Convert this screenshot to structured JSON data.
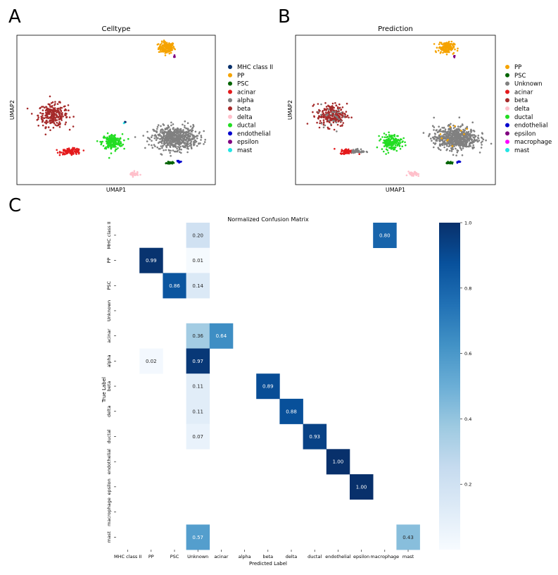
{
  "panel_labels": [
    "A",
    "B",
    "C"
  ],
  "chart_data": [
    {
      "type": "scatter",
      "title": "Celltype",
      "xlabel": "UMAP1",
      "ylabel": "UMAP2",
      "legend_position": "right",
      "legend": [
        {
          "name": "MHC class II",
          "color": "#08306b"
        },
        {
          "name": "PP",
          "color": "#f5a300"
        },
        {
          "name": "PSC",
          "color": "#006400"
        },
        {
          "name": "acinar",
          "color": "#e41a1c"
        },
        {
          "name": "alpha",
          "color": "#808080"
        },
        {
          "name": "beta",
          "color": "#a52a2a"
        },
        {
          "name": "delta",
          "color": "#ffc0cb"
        },
        {
          "name": "ductal",
          "color": "#22dd22"
        },
        {
          "name": "endothelial",
          "color": "#0000cd"
        },
        {
          "name": "epsilon",
          "color": "#800080"
        },
        {
          "name": "mast",
          "color": "#22e5e5"
        }
      ],
      "clusters": [
        {
          "label": "PP",
          "cx": 5.2,
          "cy": 9.0,
          "sx": 0.35,
          "sy": 0.28,
          "n": 150
        },
        {
          "label": "beta",
          "cx": -4.8,
          "cy": 2.5,
          "sx": 0.65,
          "sy": 0.55,
          "n": 260
        },
        {
          "label": "acinar",
          "cx": -3.2,
          "cy": -1.0,
          "sx": 0.45,
          "sy": 0.14,
          "n": 110
        },
        {
          "label": "ductal",
          "cx": 0.4,
          "cy": -0.1,
          "sx": 0.45,
          "sy": 0.38,
          "n": 180
        },
        {
          "label": "alpha",
          "cx": 6.0,
          "cy": 0.3,
          "sx": 0.95,
          "sy": 0.55,
          "n": 600
        },
        {
          "label": "delta",
          "cx": 2.3,
          "cy": -3.2,
          "sx": 0.2,
          "sy": 0.12,
          "n": 45
        },
        {
          "label": "PSC",
          "cx": 5.5,
          "cy": -2.1,
          "sx": 0.15,
          "sy": 0.06,
          "n": 28
        },
        {
          "label": "endothelial",
          "cx": 6.3,
          "cy": -2.0,
          "sx": 0.1,
          "sy": 0.04,
          "n": 12
        },
        {
          "label": "epsilon",
          "cx": 5.9,
          "cy": 8.2,
          "sx": 0.04,
          "sy": 0.05,
          "n": 6
        },
        {
          "label": "MHC class II",
          "cx": 1.5,
          "cy": 1.8,
          "sx": 0.04,
          "sy": 0.04,
          "n": 3
        },
        {
          "label": "mast",
          "cx": 1.4,
          "cy": 1.7,
          "sx": 0.03,
          "sy": 0.03,
          "n": 2
        }
      ],
      "xlim": [
        -8,
        9.5
      ],
      "ylim": [
        -4.2,
        10.2
      ]
    },
    {
      "type": "scatter",
      "title": "Prediction",
      "xlabel": "UMAP1",
      "ylabel": "UMAP2",
      "legend_position": "right",
      "legend": [
        {
          "name": "PP",
          "color": "#f5a300"
        },
        {
          "name": "PSC",
          "color": "#006400"
        },
        {
          "name": "Unknown",
          "color": "#808080"
        },
        {
          "name": "acinar",
          "color": "#e41a1c"
        },
        {
          "name": "beta",
          "color": "#a52a2a"
        },
        {
          "name": "delta",
          "color": "#ffc0cb"
        },
        {
          "name": "ductal",
          "color": "#22dd22"
        },
        {
          "name": "endothelial",
          "color": "#0000cd"
        },
        {
          "name": "epsilon",
          "color": "#800080"
        },
        {
          "name": "macrophage",
          "color": "#ff00ff"
        },
        {
          "name": "mast",
          "color": "#22e5e5"
        }
      ],
      "clusters": [
        {
          "label": "PP",
          "cx": 5.2,
          "cy": 9.0,
          "sx": 0.35,
          "sy": 0.28,
          "n": 150
        },
        {
          "label": "beta",
          "cx": -4.8,
          "cy": 2.5,
          "sx": 0.65,
          "sy": 0.55,
          "n": 230
        },
        {
          "label": "acinar",
          "cx": -3.4,
          "cy": -1.0,
          "sx": 0.35,
          "sy": 0.12,
          "n": 70
        },
        {
          "label": "ductal",
          "cx": 0.4,
          "cy": -0.1,
          "sx": 0.45,
          "sy": 0.38,
          "n": 165
        },
        {
          "label": "Unknown",
          "cx": 6.0,
          "cy": 0.3,
          "sx": 0.95,
          "sy": 0.55,
          "n": 620
        },
        {
          "label": "Unknown",
          "cx": -2.5,
          "cy": -1.0,
          "sx": 0.3,
          "sy": 0.12,
          "n": 40
        },
        {
          "label": "Unknown",
          "cx": -4.8,
          "cy": 2.5,
          "sx": 0.65,
          "sy": 0.5,
          "n": 30
        },
        {
          "label": "delta",
          "cx": 2.3,
          "cy": -3.2,
          "sx": 0.2,
          "sy": 0.12,
          "n": 42
        },
        {
          "label": "PSC",
          "cx": 5.5,
          "cy": -2.1,
          "sx": 0.15,
          "sy": 0.06,
          "n": 26
        },
        {
          "label": "endothelial",
          "cx": 6.3,
          "cy": -2.0,
          "sx": 0.1,
          "sy": 0.04,
          "n": 12
        },
        {
          "label": "epsilon",
          "cx": 5.9,
          "cy": 8.2,
          "sx": 0.04,
          "sy": 0.05,
          "n": 6
        },
        {
          "label": "PP",
          "cx": 6.3,
          "cy": 0.8,
          "sx": 0.8,
          "sy": 0.5,
          "n": 10
        }
      ],
      "xlim": [
        -8,
        9.5
      ],
      "ylim": [
        -4.2,
        10.2
      ]
    },
    {
      "type": "heatmap",
      "title": "Normalized Confusion Matrix",
      "xlabel": "Predicted Label",
      "ylabel": "True Label",
      "rows": [
        "MHC class II",
        "PP",
        "PSC",
        "Unknown",
        "acinar",
        "alpha",
        "beta",
        "delta",
        "ductal",
        "endothelial",
        "epsilon",
        "macrophage",
        "mast"
      ],
      "cols": [
        "MHC class II",
        "PP",
        "PSC",
        "Unknown",
        "acinar",
        "alpha",
        "beta",
        "delta",
        "ductal",
        "endothelial",
        "epsilon",
        "macrophage",
        "mast"
      ],
      "cells": [
        {
          "row": 0,
          "col": 3,
          "value": 0.2,
          "text": "0.20"
        },
        {
          "row": 0,
          "col": 11,
          "value": 0.8,
          "text": "0.80"
        },
        {
          "row": 1,
          "col": 1,
          "value": 0.99,
          "text": "0.99"
        },
        {
          "row": 1,
          "col": 3,
          "value": 0.01,
          "text": "0.01"
        },
        {
          "row": 2,
          "col": 2,
          "value": 0.86,
          "text": "0.86"
        },
        {
          "row": 2,
          "col": 3,
          "value": 0.14,
          "text": "0.14"
        },
        {
          "row": 4,
          "col": 3,
          "value": 0.36,
          "text": "0.36"
        },
        {
          "row": 4,
          "col": 4,
          "value": 0.64,
          "text": "0.64"
        },
        {
          "row": 5,
          "col": 1,
          "value": 0.02,
          "text": "0.02"
        },
        {
          "row": 5,
          "col": 3,
          "value": 0.97,
          "text": "0.97"
        },
        {
          "row": 6,
          "col": 3,
          "value": 0.11,
          "text": "0.11"
        },
        {
          "row": 6,
          "col": 6,
          "value": 0.89,
          "text": "0.89"
        },
        {
          "row": 7,
          "col": 3,
          "value": 0.11,
          "text": "0.11"
        },
        {
          "row": 7,
          "col": 7,
          "value": 0.88,
          "text": "0.88"
        },
        {
          "row": 8,
          "col": 3,
          "value": 0.07,
          "text": "0.07"
        },
        {
          "row": 8,
          "col": 8,
          "value": 0.93,
          "text": "0.93"
        },
        {
          "row": 9,
          "col": 9,
          "value": 1.0,
          "text": "1.00"
        },
        {
          "row": 10,
          "col": 10,
          "value": 1.0,
          "text": "1.00"
        },
        {
          "row": 12,
          "col": 3,
          "value": 0.57,
          "text": "0.57"
        },
        {
          "row": 12,
          "col": 12,
          "value": 0.43,
          "text": "0.43"
        }
      ],
      "colorbar_ticks": [
        "0.2",
        "0.4",
        "0.6",
        "0.8",
        "1.0"
      ],
      "colorbar_tick_values": [
        0.2,
        0.4,
        0.6,
        0.8,
        1.0
      ],
      "vmin": 0.0,
      "vmax": 1.0,
      "colormap": "Blues"
    }
  ]
}
